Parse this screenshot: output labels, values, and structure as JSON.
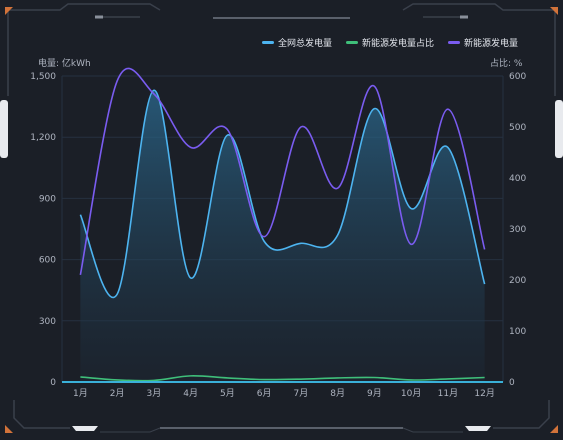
{
  "colors": {
    "background": "#1b1f27",
    "frame": "#3a404b",
    "accent_orange": "#d2733a",
    "grid": "#263140",
    "axis_line": "#3ab0d8"
  },
  "chart_data": {
    "type": "line",
    "categories": [
      "1月",
      "2月",
      "3月",
      "4月",
      "5月",
      "6月",
      "7月",
      "8月",
      "9月",
      "10月",
      "11月",
      "12月"
    ],
    "yaxis_left": {
      "label": "电量: 亿kWh",
      "min": 0,
      "max": 1500,
      "ticks": [
        "0",
        "300",
        "600",
        "900",
        "1,200",
        "1,500"
      ]
    },
    "yaxis_right": {
      "label": "占比: %",
      "min": 0,
      "max": 600,
      "ticks": [
        "0",
        "100",
        "200",
        "300",
        "400",
        "500",
        "600"
      ]
    },
    "grid": true,
    "legend_position": "top-right",
    "series": [
      {
        "name": "全网总发电量",
        "axis": "left",
        "color": "#4db4f0",
        "area": true,
        "values": [
          820,
          430,
          1430,
          510,
          1210,
          690,
          680,
          720,
          1340,
          850,
          1150,
          480
        ]
      },
      {
        "name": "新能源发电量占比",
        "axis": "left",
        "color": "#3fbf7a",
        "area": false,
        "values": [
          25,
          10,
          8,
          30,
          20,
          12,
          14,
          20,
          22,
          10,
          15,
          22
        ]
      },
      {
        "name": "新能源发电量",
        "axis": "right",
        "color": "#7a5cf0",
        "area": false,
        "values": [
          210,
          590,
          565,
          460,
          495,
          285,
          500,
          380,
          580,
          270,
          535,
          260
        ]
      }
    ]
  }
}
